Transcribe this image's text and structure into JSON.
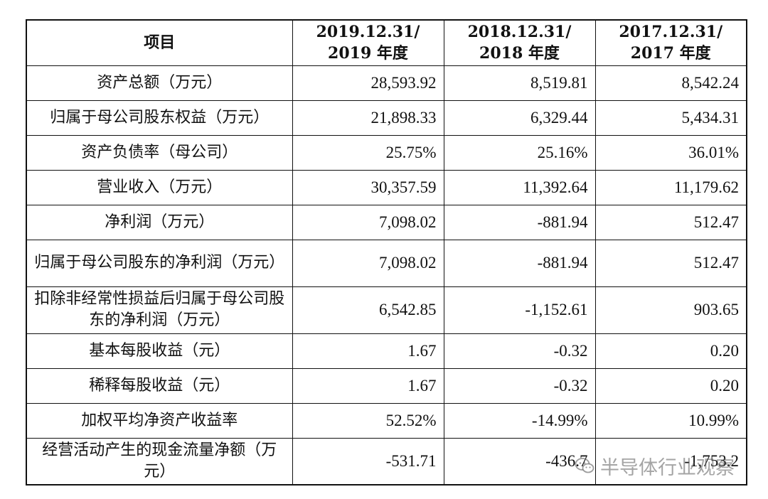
{
  "table": {
    "headers": [
      {
        "line1": "项目",
        "line2": ""
      },
      {
        "line1": "2019.12.31/",
        "line2": "2019 年度"
      },
      {
        "line1": "2018.12.31/",
        "line2": "2018 年度"
      },
      {
        "line1": "2017.12.31/",
        "line2": "2017 年度"
      }
    ],
    "rows": [
      {
        "label": "资产总额（万元）",
        "values": [
          "28,593.92",
          "8,519.81",
          "8,542.24"
        ]
      },
      {
        "label": "归属于母公司股东权益（万元）",
        "values": [
          "21,898.33",
          "6,329.44",
          "5,434.31"
        ]
      },
      {
        "label": "资产负债率（母公司）",
        "values": [
          "25.75%",
          "25.16%",
          "36.01%"
        ]
      },
      {
        "label": "营业收入（万元）",
        "values": [
          "30,357.59",
          "11,392.64",
          "11,179.62"
        ]
      },
      {
        "label": "净利润（万元）",
        "values": [
          "7,098.02",
          "-881.94",
          "512.47"
        ]
      },
      {
        "label": "归属于母公司股东的净利润（万元）",
        "values": [
          "7,098.02",
          "-881.94",
          "512.47"
        ]
      },
      {
        "label": "扣除非经常性损益后归属于母公司股东的净利润（万元）",
        "values": [
          "6,542.85",
          "-1,152.61",
          "903.65"
        ]
      },
      {
        "label": "基本每股收益（元）",
        "values": [
          "1.67",
          "-0.32",
          "0.20"
        ]
      },
      {
        "label": "稀释每股收益（元）",
        "values": [
          "1.67",
          "-0.32",
          "0.20"
        ]
      },
      {
        "label": "加权平均净资产收益率",
        "values": [
          "52.52%",
          "-14.99%",
          "10.99%"
        ]
      },
      {
        "label": "经营活动产生的现金流量净额（万元）",
        "values": [
          "-531.71",
          "-436.7",
          "-1,753.2"
        ]
      }
    ]
  },
  "watermark": {
    "icon": "wechat-icon",
    "text": "半导体行业观察"
  }
}
